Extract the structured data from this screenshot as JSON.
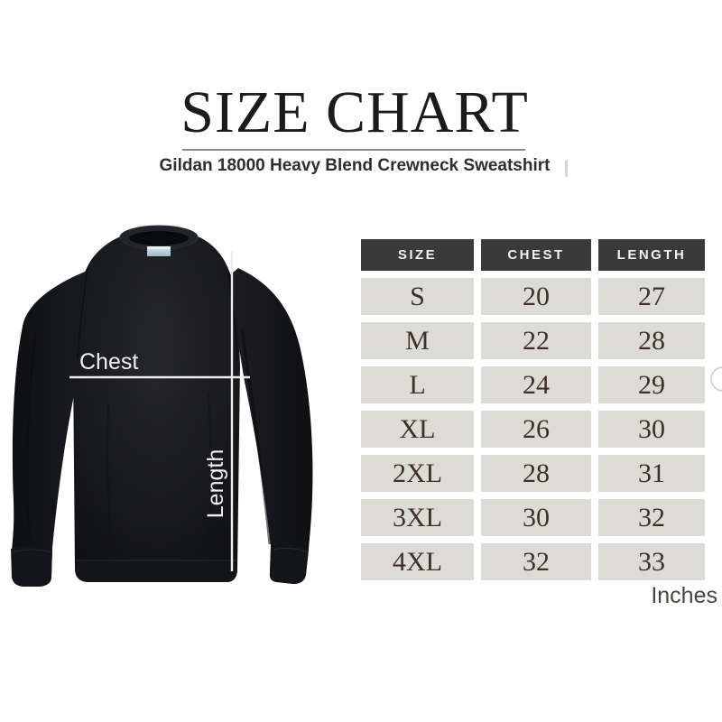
{
  "header": {
    "title": "SIZE CHART",
    "subtitle": "Gildan 18000 Heavy Blend Crewneck Sweatshirt"
  },
  "diagram": {
    "garment": "black-crewneck-sweatshirt",
    "chest_label": "Chest",
    "length_label": "Length",
    "line_color": "#ededed",
    "garment_color": "#17181d",
    "neck_tag_color": "#b9cede"
  },
  "table": {
    "headers": [
      "SIZE",
      "CHEST",
      "LENGTH"
    ],
    "header_bg": "#3a3a3a",
    "header_text_color": "#f2f1ee",
    "cell_bg": "#dcdbd6",
    "cell_text_color": "#3f2f26",
    "rows": [
      {
        "size": "S",
        "chest": "20",
        "length": "27"
      },
      {
        "size": "M",
        "chest": "22",
        "length": "28"
      },
      {
        "size": "L",
        "chest": "24",
        "length": "29"
      },
      {
        "size": "XL",
        "chest": "26",
        "length": "30"
      },
      {
        "size": "2XL",
        "chest": "28",
        "length": "31"
      },
      {
        "size": "3XL",
        "chest": "30",
        "length": "32"
      },
      {
        "size": "4XL",
        "chest": "32",
        "length": "33"
      }
    ],
    "units_label": "Inches"
  },
  "chart_data": {
    "type": "table",
    "title": "SIZE CHART",
    "subtitle": "Gildan 18000 Heavy Blend Crewneck Sweatshirt",
    "columns": [
      "SIZE",
      "CHEST",
      "LENGTH"
    ],
    "rows": [
      [
        "S",
        20,
        27
      ],
      [
        "M",
        22,
        28
      ],
      [
        "L",
        24,
        29
      ],
      [
        "XL",
        26,
        30
      ],
      [
        "2XL",
        28,
        31
      ],
      [
        "3XL",
        30,
        32
      ],
      [
        "4XL",
        32,
        33
      ]
    ],
    "units": "Inches"
  }
}
